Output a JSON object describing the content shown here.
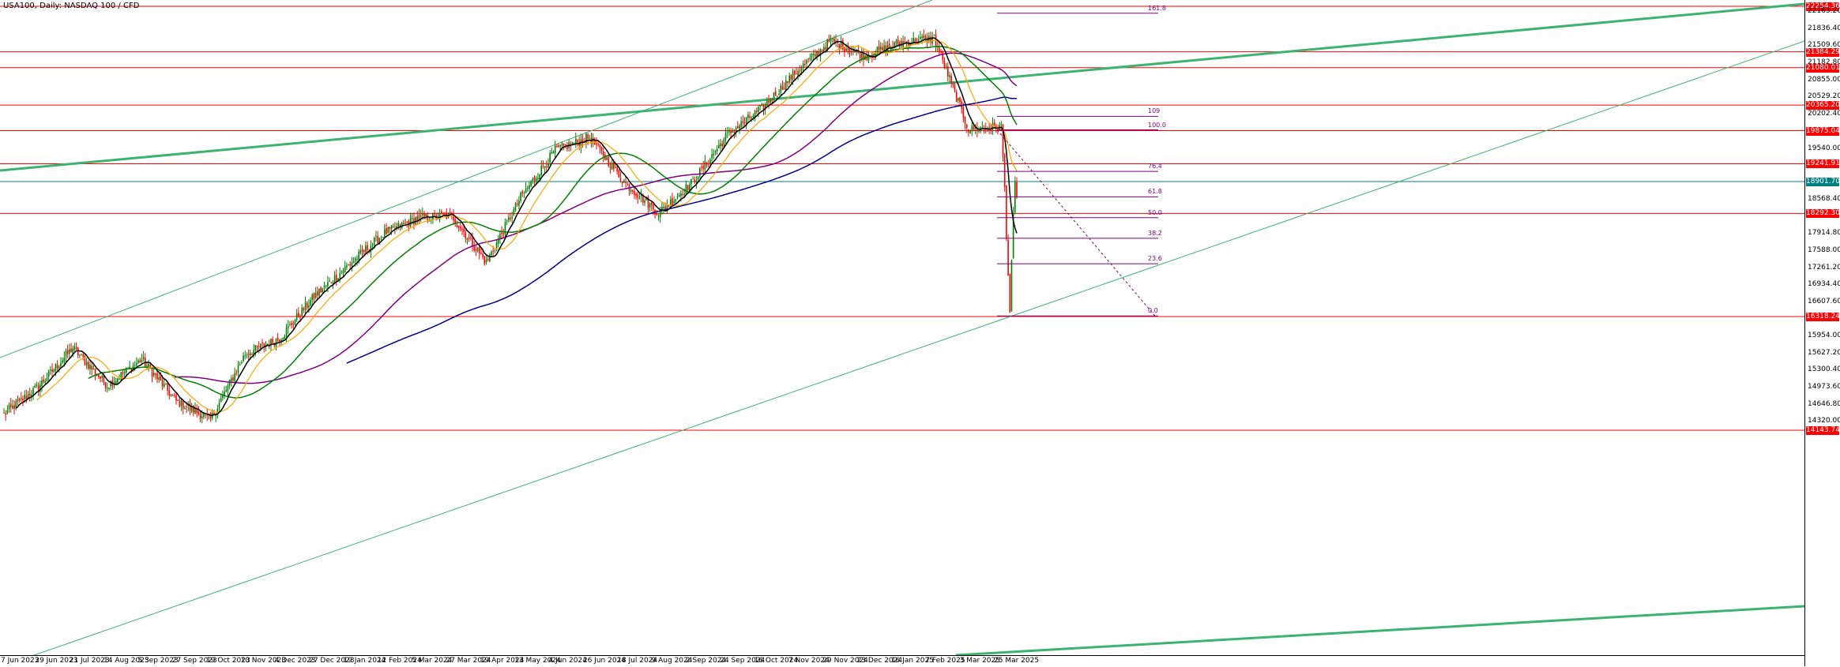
{
  "chart": {
    "symbol_label": "USA100, Daily:  NASDAQ 100 / CFD"
  },
  "price_axis": {
    "ticks": [
      "22163.20",
      "21836.40",
      "21509.60",
      "21182.80",
      "20855.00",
      "20529.20",
      "20202.40",
      "19540.00",
      "18568.40",
      "17914.80",
      "17588.00",
      "17261.20",
      "16934.40",
      "16607.60",
      "15954.00",
      "15627.20",
      "15300.40",
      "14973.60",
      "14646.80",
      "14320.00"
    ]
  },
  "levels": [
    {
      "label": "22254.36",
      "value": 22254.36,
      "bg": "#ff0000"
    },
    {
      "label": "21384.29",
      "value": 21384.29,
      "bg": "#ff0000"
    },
    {
      "label": "21080.01",
      "value": 21080.01,
      "bg": "#ff0000"
    },
    {
      "label": "20365.20",
      "value": 20365.2,
      "bg": "#ff0000"
    },
    {
      "label": "19875.04",
      "value": 19875.04,
      "bg": "#ff0000"
    },
    {
      "label": "19241.91",
      "value": 19241.91,
      "bg": "#ff0000"
    },
    {
      "label": "18901.70",
      "value": 18901.7,
      "bg": "#008080"
    },
    {
      "label": "18292.30",
      "value": 18292.3,
      "bg": "#ff0000"
    },
    {
      "label": "16318.24",
      "value": 16318.24,
      "bg": "#ff0000"
    },
    {
      "label": "14143.74",
      "value": 14143.74,
      "bg": "#ff0000"
    }
  ],
  "fibonacci": {
    "color": "#800080",
    "levels": [
      {
        "label": "161.8",
        "value": 22123.0
      },
      {
        "label": "109",
        "value": 20150.0
      },
      {
        "label": "100.0",
        "value": 19890.0
      },
      {
        "label": "76.4",
        "value": 19096.0
      },
      {
        "label": "61.8",
        "value": 18608.0
      },
      {
        "label": "50.0",
        "value": 18211.0
      },
      {
        "label": "38.2",
        "value": 17815.0
      },
      {
        "label": "23.6",
        "value": 17328.0
      },
      {
        "label": "0.0",
        "value": 16330.0
      }
    ]
  },
  "date_axis": {
    "labels": [
      "7 Jun 2023",
      "29 Jun 2023",
      "21 Jul 2023",
      "14 Aug 2023",
      "5 Sep 2023",
      "27 Sep 2023",
      "19 Oct 2023",
      "10 Nov 2023",
      "4 Dec 2023",
      "27 Dec 2023",
      "19 Jan 2024",
      "12 Feb 2024",
      "5 Mar 2024",
      "27 Mar 2024",
      "19 Apr 2024",
      "13 May 2024",
      "4 Jun 2024",
      "26 Jun 2024",
      "18 Jul 2024",
      "9 Aug 2024",
      "2 Sep 2024",
      "24 Sep 2024",
      "16 Oct 2024",
      "7 Nov 2024",
      "29 Nov 2024",
      "23 Dec 2024",
      "16 Jan 2025",
      "7 Feb 2025",
      "3 Mar 2025",
      "25 Mar 2025"
    ]
  },
  "colors": {
    "bull_candle": "#008000",
    "bear_candle": "#ff0000",
    "ma_fast": "#000000",
    "ma_20": "#ffa500",
    "ma_50": "#008000",
    "ma_100": "#800080",
    "ma_200": "#00008b",
    "channel": "#3cb371",
    "level_line": "#ff0000",
    "current_price": "#008080"
  },
  "chart_data": {
    "type": "candlestick",
    "x_range": [
      "7 Jun 2023",
      "25 Mar 2025"
    ],
    "y_range": [
      14143.74,
      22254.36
    ],
    "anchors": [
      {
        "date": "7 Jun 2023",
        "close": 14450
      },
      {
        "date": "29 Jun 2023",
        "close": 14980
      },
      {
        "date": "21 Jul 2023",
        "close": 15720
      },
      {
        "date": "14 Aug 2023",
        "close": 15000
      },
      {
        "date": "5 Sep 2023",
        "close": 15500
      },
      {
        "date": "27 Sep 2023",
        "close": 14700
      },
      {
        "date": "19 Oct 2023",
        "close": 14350
      },
      {
        "date": "10 Nov 2023",
        "close": 15600
      },
      {
        "date": "4 Dec 2023",
        "close": 15900
      },
      {
        "date": "27 Dec 2023",
        "close": 16700
      },
      {
        "date": "19 Jan 2024",
        "close": 17300
      },
      {
        "date": "12 Feb 2024",
        "close": 17900
      },
      {
        "date": "5 Mar 2024",
        "close": 18200
      },
      {
        "date": "27 Mar 2024",
        "close": 18250
      },
      {
        "date": "19 Apr 2024",
        "close": 17350
      },
      {
        "date": "13 May 2024",
        "close": 18600
      },
      {
        "date": "4 Jun 2024",
        "close": 19500
      },
      {
        "date": "26 Jun 2024",
        "close": 19750
      },
      {
        "date": "18 Jul 2024",
        "close": 18900
      },
      {
        "date": "9 Aug 2024",
        "close": 18300
      },
      {
        "date": "2 Sep 2024",
        "close": 18900
      },
      {
        "date": "24 Sep 2024",
        "close": 19800
      },
      {
        "date": "16 Oct 2024",
        "close": 20300
      },
      {
        "date": "7 Nov 2024",
        "close": 21000
      },
      {
        "date": "29 Nov 2024",
        "close": 21600
      },
      {
        "date": "23 Dec 2024",
        "close": 21300
      },
      {
        "date": "16 Jan 2025",
        "close": 21550
      },
      {
        "date": "7 Feb 2025",
        "close": 21650
      },
      {
        "date": "3 Mar 2025",
        "close": 19900
      },
      {
        "date": "25 Mar 2025",
        "close": 19950
      }
    ],
    "recent_closes": [
      19400,
      18800,
      17800,
      17100,
      16400,
      17400,
      18300,
      18900,
      18600
    ]
  }
}
